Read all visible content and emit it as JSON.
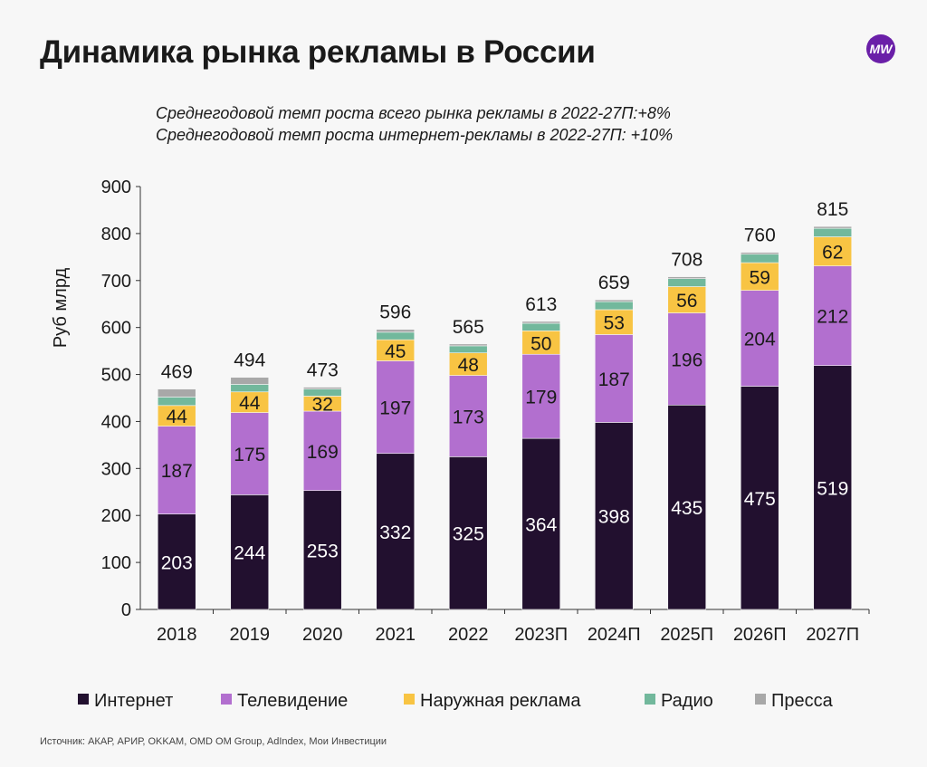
{
  "title": "Динамика рынка рекламы в России",
  "logo_text": "MW",
  "subtitles": [
    "Среднегодовой темп роста всего рынка рекламы в 2022-27П:+8%",
    "Среднегодовой темп роста интернет-рекламы в 2022-27П: +10%"
  ],
  "source": "Источник: АКАР, АРИР, OKKAM, OMD OM Group, AdIndex, Мои Инвестиции",
  "chart_data": {
    "type": "bar",
    "stacked": true,
    "ylabel": "Руб млрд",
    "xlabel": "",
    "ylim": [
      0,
      900
    ],
    "yticks": [
      0,
      100,
      200,
      300,
      400,
      500,
      600,
      700,
      800,
      900
    ],
    "categories": [
      "2018",
      "2019",
      "2020",
      "2021",
      "2022",
      "2023П",
      "2024П",
      "2025П",
      "2026П",
      "2027П"
    ],
    "totals": [
      469,
      494,
      473,
      596,
      565,
      613,
      659,
      708,
      760,
      815
    ],
    "legend_position": "bottom",
    "grid": false,
    "series": [
      {
        "name": "Интернет",
        "color": "#22102f",
        "label_color": "#ffffff",
        "labeled": true,
        "values": [
          203,
          244,
          253,
          332,
          325,
          364,
          398,
          435,
          475,
          519
        ]
      },
      {
        "name": "Телевидение",
        "color": "#b26fcf",
        "label_color": "#1a1a1a",
        "labeled": true,
        "values": [
          187,
          175,
          169,
          197,
          173,
          179,
          187,
          196,
          204,
          212
        ]
      },
      {
        "name": "Наружная реклама",
        "color": "#f8c443",
        "label_color": "#1a1a1a",
        "labeled": true,
        "values": [
          44,
          44,
          32,
          45,
          48,
          50,
          53,
          56,
          59,
          62
        ]
      },
      {
        "name": "Радио",
        "color": "#72b89c",
        "labeled": false,
        "values": [
          18,
          16,
          15,
          16,
          15,
          16,
          17,
          17,
          18,
          18
        ]
      },
      {
        "name": "Пресса",
        "color": "#a8a8a8",
        "labeled": false,
        "values": [
          17,
          15,
          4,
          6,
          4,
          4,
          4,
          4,
          4,
          4
        ]
      }
    ]
  }
}
